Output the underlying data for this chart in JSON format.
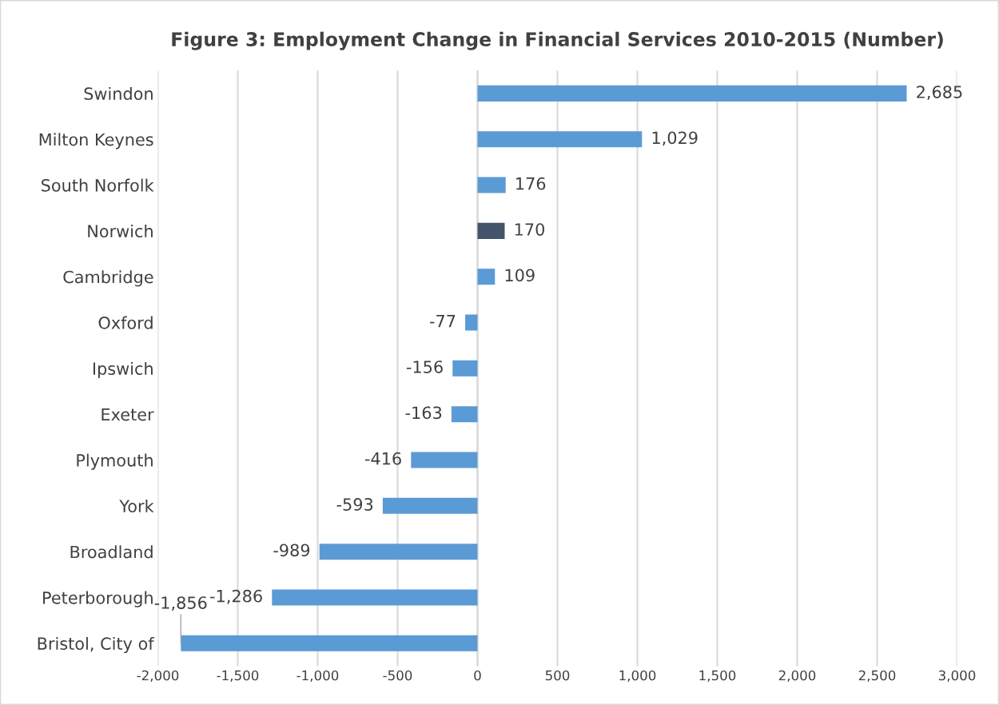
{
  "chart_data": {
    "type": "bar",
    "orientation": "horizontal",
    "title": "Figure 3: Employment Change in Financial Services 2010-2015 (Number)",
    "categories": [
      "Swindon",
      "Milton Keynes",
      "South Norfolk",
      "Norwich",
      "Cambridge",
      "Oxford",
      "Ipswich",
      "Exeter",
      "Plymouth",
      "York",
      "Broadland",
      "Peterborough",
      "Bristol, City of"
    ],
    "values": [
      2685,
      1029,
      176,
      170,
      109,
      -77,
      -156,
      -163,
      -416,
      -593,
      -989,
      -1286,
      -1856
    ],
    "colors": [
      "#5b9bd5",
      "#5b9bd5",
      "#5b9bd5",
      "#44546a",
      "#5b9bd5",
      "#5b9bd5",
      "#5b9bd5",
      "#5b9bd5",
      "#5b9bd5",
      "#5b9bd5",
      "#5b9bd5",
      "#5b9bd5",
      "#5b9bd5"
    ],
    "value_labels": [
      "2,685",
      "1,029",
      "176",
      "170",
      "109",
      "-77",
      "-156",
      "-163",
      "-416",
      "-593",
      "-989",
      "-1,286",
      "-1,856"
    ],
    "xlim": [
      -2000,
      3000
    ],
    "xticks": [
      {
        "value": -2000,
        "label": "-2,000"
      },
      {
        "value": -1500,
        "label": "-1,500"
      },
      {
        "value": -1000,
        "label": "-1,000"
      },
      {
        "value": -500,
        "label": "-500"
      },
      0,
      500,
      {
        "value": 1000,
        "label": "1,000"
      },
      {
        "value": 1500,
        "label": "1,500"
      },
      {
        "value": 2000,
        "label": "2,000"
      },
      {
        "value": 2500,
        "label": "2,500"
      },
      {
        "value": 3000,
        "label": "3,000"
      }
    ],
    "grid": "x",
    "legend": false
  }
}
